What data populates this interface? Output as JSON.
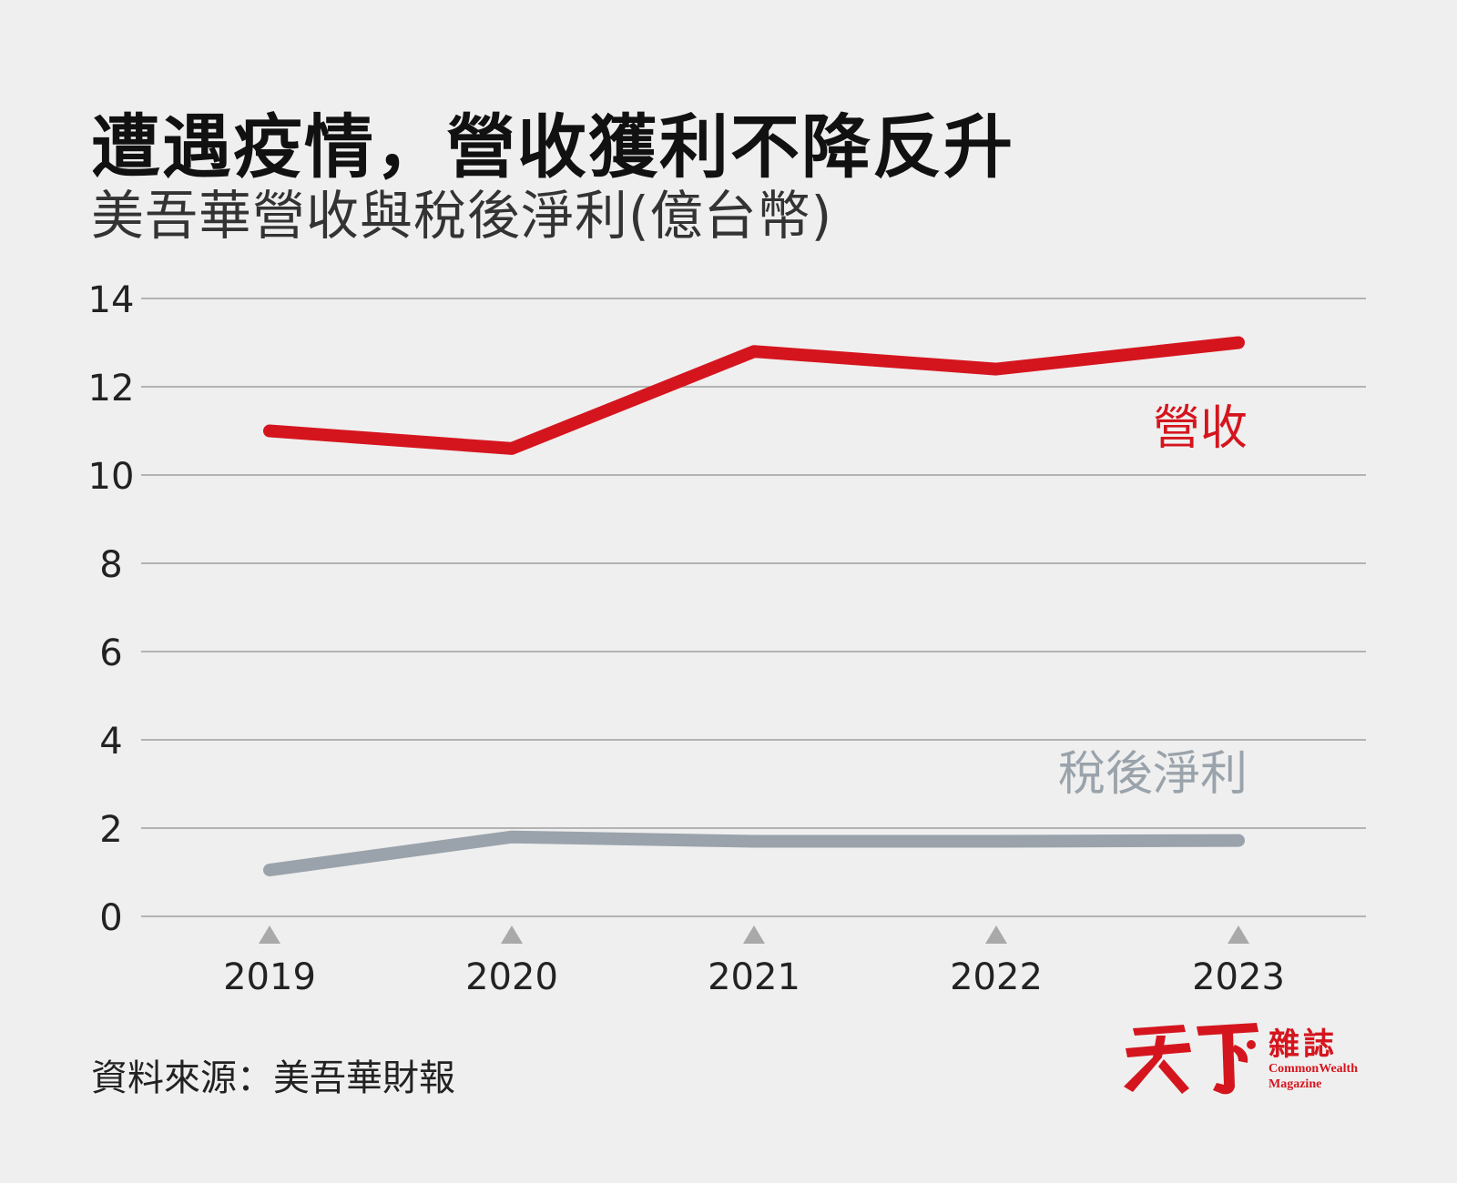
{
  "header": {
    "title": "遭遇疫情，營收獲利不降反升",
    "subtitle": "美吾華營收與稅後淨利(億台幣)"
  },
  "chart_data": {
    "type": "line",
    "x": [
      "2019",
      "2020",
      "2021",
      "2022",
      "2023"
    ],
    "series": [
      {
        "name": "營收",
        "values": [
          11.0,
          10.6,
          12.8,
          12.4,
          13.0
        ],
        "color": "#d5151e"
      },
      {
        "name": "稅後淨利",
        "values": [
          1.05,
          1.8,
          1.7,
          1.7,
          1.72
        ],
        "color": "#9aa3ab"
      }
    ],
    "ylim": [
      0,
      14
    ],
    "yticks": [
      0,
      2,
      4,
      6,
      8,
      10,
      12,
      14
    ],
    "grid": true,
    "xlabel": "",
    "ylabel": ""
  },
  "footer": {
    "source": "資料來源：美吾華財報"
  },
  "logo": {
    "name_cn": "雜誌",
    "name_en": "CommonWealth Magazine",
    "color": "#d5151e"
  }
}
